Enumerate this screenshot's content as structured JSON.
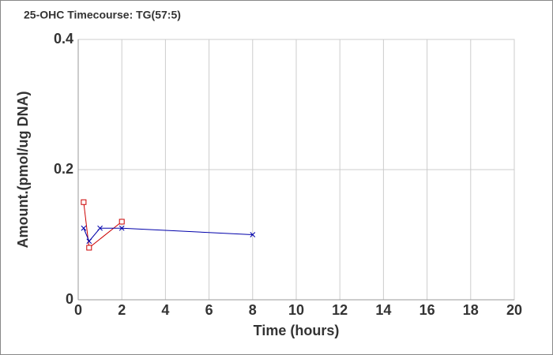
{
  "chart_data": {
    "type": "line",
    "title": "25-OHC Timecourse: TG(57:5)",
    "x_label": "Time (hours)",
    "y_label": "Amount.(pmol/ug DNA)",
    "series": [
      {
        "color": "#cc0000",
        "marker": "square",
        "x": [
          0.25,
          0.5,
          2
        ],
        "values": [
          0.15,
          0.08,
          0.12
        ]
      },
      {
        "color": "#0000aa",
        "marker": "x",
        "x": [
          0.25,
          0.5,
          1,
          2,
          8
        ],
        "values": [
          0.11,
          0.09,
          0.11,
          0.11,
          0.1
        ]
      }
    ],
    "xlim": [
      0,
      20
    ],
    "xticks": [
      0,
      2,
      4,
      6,
      8,
      10,
      12,
      14,
      16,
      18,
      20
    ],
    "ylim": [
      0,
      0.4
    ],
    "yticks": [
      0,
      0.2,
      0.4
    ],
    "grid": true
  }
}
